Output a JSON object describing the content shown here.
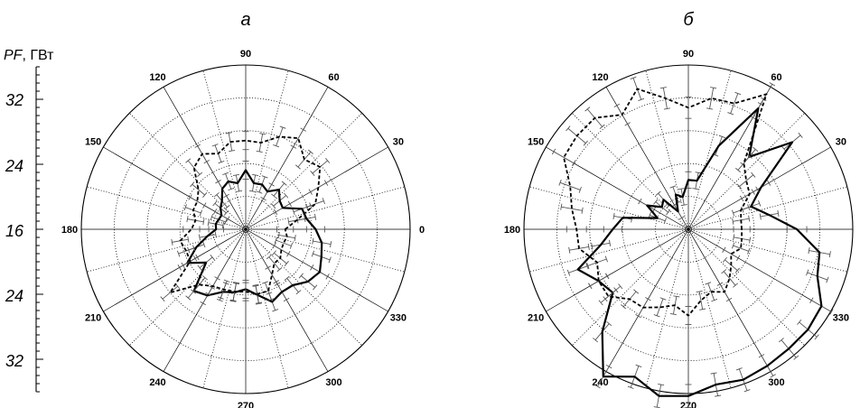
{
  "y_axis": {
    "label_italic": "PF",
    "label_rest": ", ГВт",
    "ticks": [
      "32",
      "24",
      "16",
      "24",
      "32"
    ]
  },
  "chart_data": [
    {
      "type": "polar-line",
      "title": "а",
      "angle_labels": [
        "0",
        "30",
        "60",
        "90",
        "120",
        "150",
        "180",
        "210",
        "240",
        "270",
        "300",
        "330"
      ],
      "radial_range": [
        16,
        36
      ],
      "grid": true,
      "series": [
        {
          "style": "solid",
          "color": "#000000",
          "angles": [
            0,
            10,
            20,
            30,
            40,
            50,
            60,
            70,
            80,
            90,
            100,
            110,
            120,
            130,
            140,
            150,
            160,
            170,
            180,
            190,
            200,
            210,
            220,
            230,
            240,
            250,
            260,
            270,
            280,
            290,
            300,
            310,
            320,
            330,
            340,
            350
          ],
          "values": [
            24.5,
            23.5,
            23.3,
            21.2,
            21.4,
            22.3,
            21.3,
            21.8,
            21.7,
            23.2,
            21.7,
            22.2,
            21.7,
            20.5,
            20.0,
            19.4,
            19.5,
            19.7,
            19.6,
            20.7,
            22.4,
            24.2,
            22.3,
            25.8,
            25.3,
            24.1,
            23.8,
            23.3,
            24.1,
            25.4,
            24.8,
            24.9,
            25.9,
            26.4,
            25.8,
            25.4
          ],
          "errors": [
            1.1,
            1.1,
            1.1,
            1.0,
            1.0,
            1.0,
            1.0,
            1.0,
            1.0,
            1.1,
            1.0,
            1.0,
            1.0,
            1.0,
            0.9,
            0.9,
            0.9,
            0.9,
            0.9,
            1.0,
            1.0,
            1.1,
            1.0,
            1.1,
            1.1,
            1.1,
            1.1,
            1.1,
            1.1,
            1.1,
            1.1,
            1.1,
            1.1,
            1.1,
            1.1,
            1.1
          ]
        },
        {
          "style": "dashed",
          "color": "#000000",
          "angles": [
            0,
            10,
            20,
            30,
            40,
            50,
            60,
            70,
            80,
            90,
            100,
            110,
            120,
            130,
            140,
            150,
            160,
            170,
            180,
            190,
            200,
            210,
            220,
            230,
            240,
            250,
            260,
            270,
            280,
            290,
            300,
            310,
            320,
            330,
            340,
            350
          ],
          "values": [
            20.8,
            22.3,
            25.0,
            26.2,
            27.8,
            27.1,
            28.8,
            28.0,
            26.7,
            26.8,
            26.8,
            25.8,
            26.6,
            25.8,
            23.5,
            22.8,
            22.8,
            22.2,
            22.6,
            24.1,
            23.7,
            23.8,
            28.0,
            24.8,
            24.0,
            23.8,
            23.7,
            23.6,
            24.0,
            24.0,
            22.4,
            21.4,
            21.5,
            21.0,
            20.9,
            21.1
          ],
          "errors": [
            1.0,
            1.0,
            1.1,
            1.1,
            1.2,
            1.2,
            1.2,
            1.2,
            1.1,
            1.1,
            1.1,
            1.1,
            1.1,
            1.1,
            1.0,
            1.0,
            1.0,
            1.0,
            1.0,
            1.0,
            1.0,
            1.0,
            1.2,
            1.1,
            1.1,
            1.1,
            1.1,
            1.1,
            1.1,
            1.1,
            1.0,
            1.0,
            1.0,
            1.0,
            1.0,
            1.0
          ]
        }
      ]
    },
    {
      "type": "polar-line",
      "title": "б",
      "angle_labels": [
        "0",
        "30",
        "60",
        "90",
        "120",
        "150",
        "180",
        "210",
        "240",
        "270",
        "300",
        "330"
      ],
      "radial_range": [
        16,
        36
      ],
      "grid": true,
      "series": [
        {
          "style": "solid",
          "color": "#000000",
          "angles": [
            0,
            10,
            20,
            30,
            40,
            50,
            60,
            70,
            80,
            90,
            100,
            110,
            120,
            130,
            140,
            150,
            160,
            170,
            180,
            190,
            200,
            210,
            220,
            230,
            240,
            250,
            260,
            270,
            280,
            290,
            300,
            310,
            320,
            330,
            340,
            350
          ],
          "values": [
            29.2,
            26.0,
            24.1,
            26.2,
            32.5,
            27.5,
            33.0,
            26.8,
            22.0,
            22.0,
            20.0,
            20.5,
            18.5,
            20.7,
            20.2,
            21.8,
            20.0,
            24.1,
            25.2,
            26.8,
            30.3,
            28.6,
            28.0,
            32.3,
            36.7,
            35.1,
            36.6,
            36.3,
            35.2,
            35.5,
            35.2,
            35.0,
            35.0,
            34.7,
            32.7,
            32.2
          ],
          "errors": [
            1.2,
            1.1,
            1.1,
            1.1,
            1.3,
            1.2,
            1.3,
            1.2,
            1.0,
            1.0,
            1.0,
            1.0,
            0.9,
            1.0,
            1.0,
            1.0,
            1.0,
            1.1,
            1.1,
            1.1,
            1.2,
            1.2,
            1.2,
            1.3,
            1.4,
            1.4,
            1.4,
            1.4,
            1.4,
            1.4,
            1.4,
            1.4,
            1.4,
            1.4,
            1.3,
            1.3
          ]
        },
        {
          "style": "dashed",
          "color": "#000000",
          "angles": [
            0,
            10,
            20,
            30,
            40,
            50,
            60,
            70,
            80,
            90,
            100,
            110,
            120,
            130,
            140,
            150,
            160,
            170,
            180,
            190,
            200,
            210,
            220,
            230,
            240,
            250,
            260,
            270,
            280,
            290,
            300,
            310,
            320,
            330,
            340,
            350
          ],
          "values": [
            22.5,
            22.5,
            22.8,
            24.6,
            25.2,
            26.5,
            35.0,
            32.3,
            32.2,
            30.8,
            32.2,
            34.2,
            32.1,
            33.7,
            33.7,
            33.5,
            31.3,
            30.4,
            29.6,
            29.5,
            27.8,
            28.6,
            28.7,
            27.1,
            27.0,
            26.1,
            25.4,
            26.5,
            24.8,
            24.1,
            24.8,
            23.8,
            22.8,
            22.0,
            22.8,
            22.6
          ],
          "errors": [
            1.0,
            1.0,
            1.0,
            1.1,
            1.1,
            1.1,
            1.4,
            1.3,
            1.3,
            1.3,
            1.3,
            1.4,
            1.3,
            1.4,
            1.4,
            1.4,
            1.3,
            1.3,
            1.2,
            1.2,
            1.2,
            1.2,
            1.2,
            1.2,
            1.2,
            1.1,
            1.1,
            1.1,
            1.1,
            1.1,
            1.1,
            1.1,
            1.0,
            1.0,
            1.0,
            1.0
          ]
        }
      ]
    }
  ]
}
